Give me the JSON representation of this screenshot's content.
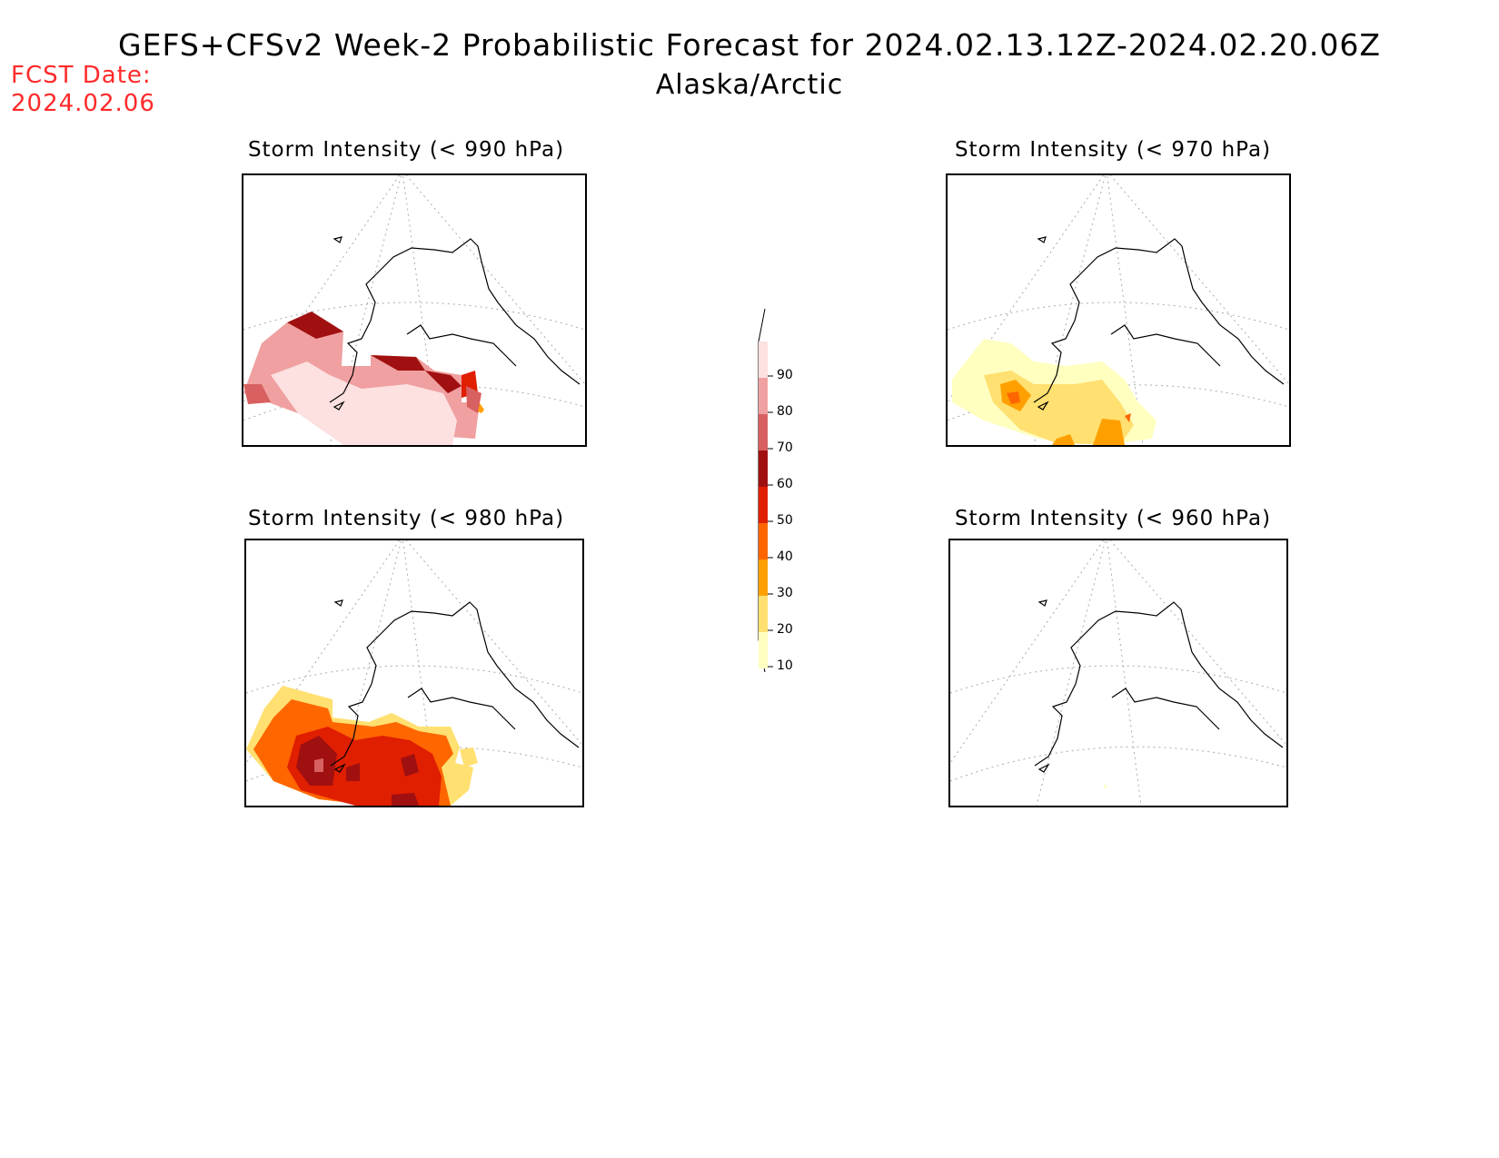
{
  "header": {
    "title": "GEFS+CFSv2 Week-2 Probabilistic Forecast for 2024.02.13.12Z-2024.02.20.06Z",
    "subtitle": "Alaska/Arctic",
    "fcst_label": "FCST Date:",
    "fcst_date": "2024.02.06"
  },
  "panels": [
    {
      "title": "Storm Intensity (< 990 hPa)"
    },
    {
      "title": "Storm Intensity (< 970 hPa)"
    },
    {
      "title": "Storm Intensity (< 980 hPa)"
    },
    {
      "title": "Storm Intensity (< 960 hPa)"
    }
  ],
  "colorbar": {
    "ticks": [
      "90",
      "80",
      "70",
      "60",
      "50",
      "40",
      "30",
      "20",
      "10"
    ],
    "colors": [
      "#fde0e0",
      "#f0a0a0",
      "#d86060",
      "#a01010",
      "#e01e00",
      "#ff6600",
      "#ffa000",
      "#ffe070",
      "#ffffc0"
    ]
  }
}
